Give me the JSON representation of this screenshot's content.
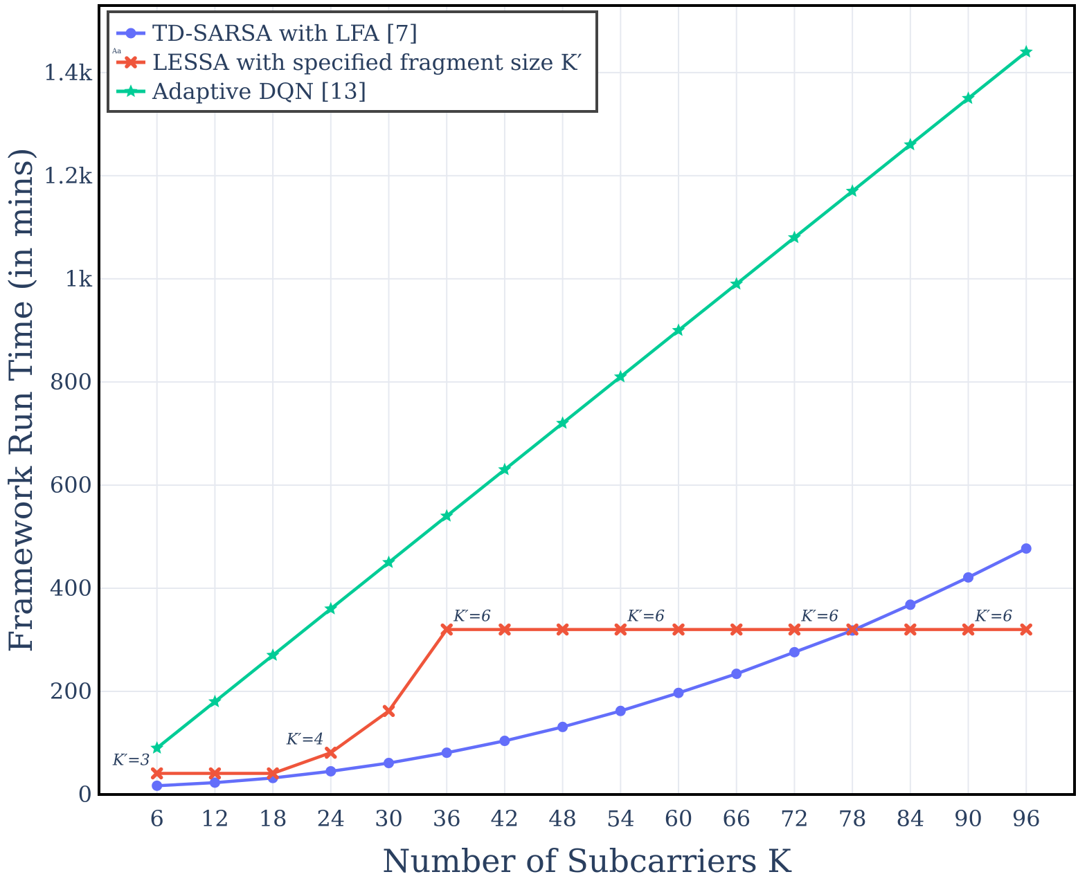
{
  "chart_data": {
    "type": "line",
    "xlabel": "Number of Subcarriers K",
    "ylabel": "Framework Run Time (in mins)",
    "x": [
      6,
      12,
      18,
      24,
      30,
      36,
      42,
      48,
      54,
      60,
      66,
      72,
      78,
      84,
      90,
      96
    ],
    "xlim": [
      0,
      101
    ],
    "ylim": [
      0,
      1530
    ],
    "x_ticks": [
      "6",
      "12",
      "18",
      "24",
      "30",
      "36",
      "42",
      "48",
      "54",
      "60",
      "66",
      "72",
      "78",
      "84",
      "90",
      "96"
    ],
    "y_ticks": [
      {
        "value": 0,
        "label": "0"
      },
      {
        "value": 200,
        "label": "200"
      },
      {
        "value": 400,
        "label": "400"
      },
      {
        "value": 600,
        "label": "600"
      },
      {
        "value": 800,
        "label": "800"
      },
      {
        "value": 1000,
        "label": "1k"
      },
      {
        "value": 1200,
        "label": "1.2k"
      },
      {
        "value": 1400,
        "label": "1.4k"
      }
    ],
    "grid": true,
    "legend_position": "top-left",
    "legend_marker_text": "Aa",
    "series": [
      {
        "name": "TD-SARSA with LFA [7]",
        "color": "#636efa",
        "marker": "circle",
        "values": [
          17,
          23,
          32,
          45,
          61,
          81,
          104,
          131,
          162,
          197,
          234,
          276,
          318,
          368,
          421,
          477
        ]
      },
      {
        "name": "LESSA with specified fragment size K′",
        "color": "#ef553b",
        "marker": "x",
        "values": [
          41,
          41,
          41,
          81,
          162,
          320,
          320,
          320,
          320,
          320,
          320,
          320,
          320,
          320,
          320,
          320
        ]
      },
      {
        "name": "Adaptive DQN [13]",
        "color": "#00cc96",
        "marker": "star",
        "values": [
          90,
          180,
          270,
          360,
          450,
          540,
          630,
          720,
          810,
          900,
          990,
          1080,
          1170,
          1260,
          1350,
          1440
        ]
      }
    ],
    "annotations": [
      {
        "text": "K′=3",
        "x": 6,
        "y": 41,
        "anchor": "end"
      },
      {
        "text": "K′=4",
        "x": 24,
        "y": 81,
        "anchor": "end"
      },
      {
        "text": "K′=6",
        "x": 36,
        "y": 320,
        "anchor": "start"
      },
      {
        "text": "K′=6",
        "x": 54,
        "y": 320,
        "anchor": "start"
      },
      {
        "text": "K′=6",
        "x": 72,
        "y": 320,
        "anchor": "start"
      },
      {
        "text": "K′=6",
        "x": 90,
        "y": 320,
        "anchor": "start"
      }
    ]
  }
}
